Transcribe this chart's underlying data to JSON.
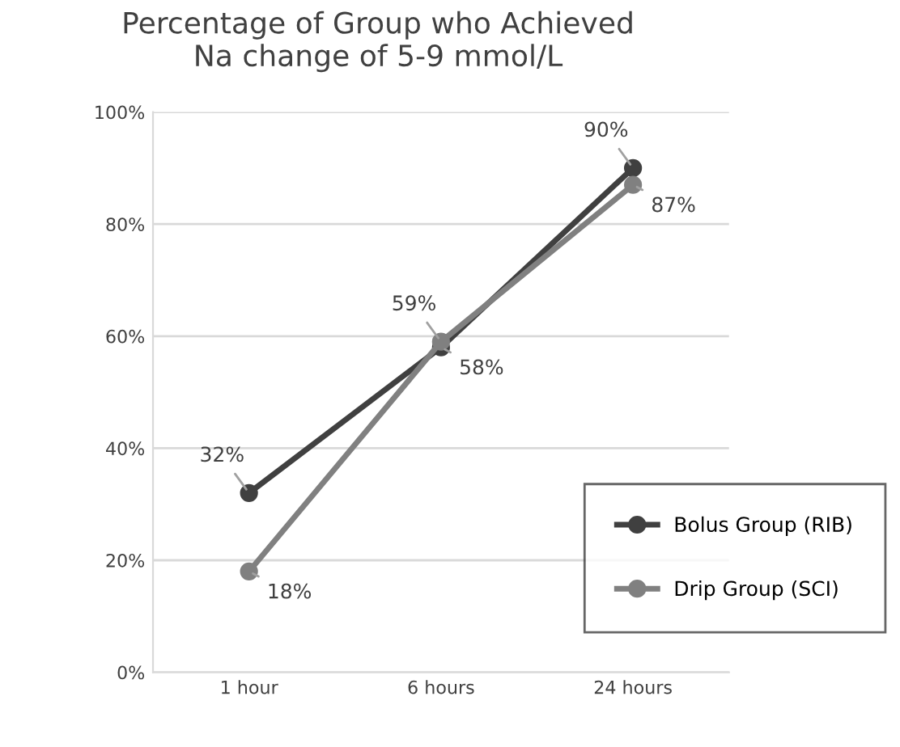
{
  "chart_data": {
    "type": "line",
    "title": "Percentage of Group who Achieved\nNa change of 5-9 mmol/L",
    "categories": [
      "1 hour",
      "6 hours",
      "24 hours"
    ],
    "series": [
      {
        "name": "Bolus Group (RIB)",
        "color": "#404040",
        "values": [
          32,
          58,
          90
        ],
        "value_labels": [
          "32%",
          "58%",
          "90%"
        ]
      },
      {
        "name": "Drip Group (SCI)",
        "color": "#808080",
        "values": [
          18,
          59,
          87
        ],
        "value_labels": [
          "18%",
          "59%",
          "87%"
        ]
      }
    ],
    "ylim": [
      0,
      100
    ],
    "yticks": [
      {
        "value": 0,
        "label": "0%"
      },
      {
        "value": 20,
        "label": "20%"
      },
      {
        "value": 40,
        "label": "40%"
      },
      {
        "value": 60,
        "label": "60%"
      },
      {
        "value": 80,
        "label": "80%"
      },
      {
        "value": 100,
        "label": "100%"
      }
    ],
    "grid": "y",
    "legend": "bottom right",
    "marker": "circle",
    "line_style": "solid"
  }
}
